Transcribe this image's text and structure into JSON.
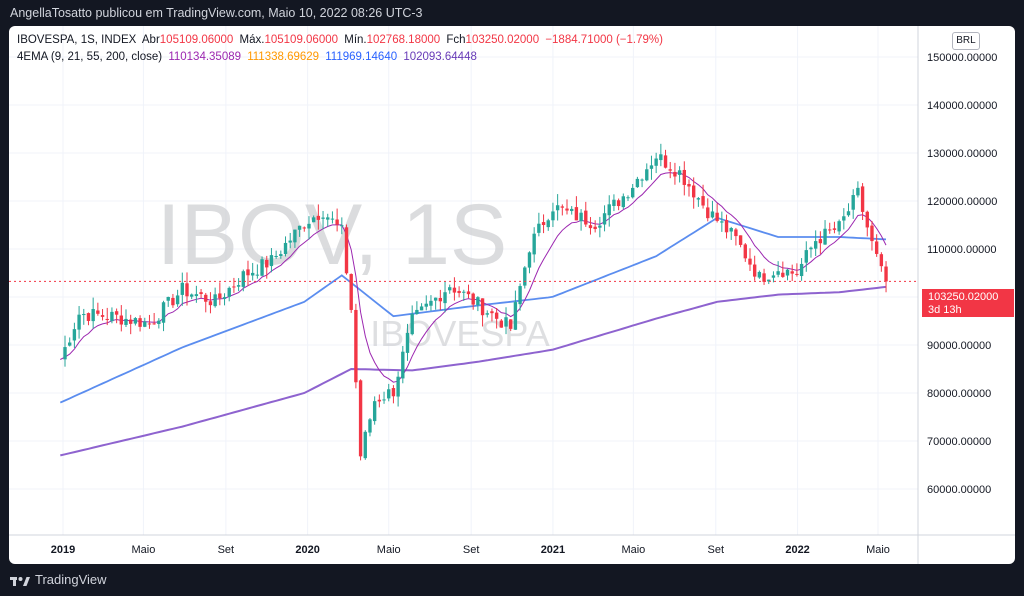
{
  "header": {
    "publisher_line": "AngellaTosatto publicou em TradingView.com, Maio 10, 2022 08:26 UTC-3"
  },
  "legend": {
    "symbol": "IBOVESPA, 1S, INDEX",
    "open_label": "Abr",
    "open_value": "105109.06000",
    "high_label": "Máx.",
    "high_value": "105109.06000",
    "low_label": "Mín.",
    "low_value": "102768.18000",
    "close_label": "Fch",
    "close_value": "103250.02000",
    "change": "−1884.71000 (−1.79%)",
    "indicator_name": "4EMA (9, 21, 55, 200, close)",
    "ema9": "110134.35089",
    "ema21": "111338.69629",
    "ema55": "111969.14640",
    "ema200": "102093.64448"
  },
  "currency_badge": "BRL",
  "price_tag": {
    "price": "103250.02000",
    "countdown": "3d 13h"
  },
  "watermark": {
    "big": "IBOV, 1S",
    "small": "IBOVESPA"
  },
  "footer": {
    "brand": "TradingView"
  },
  "colors": {
    "up": "#26a69a",
    "down": "#f23645",
    "ema9": "#9c27b0",
    "ema21": "#ff9800",
    "ema55": "#5b8def",
    "ema200": "#8e63cf"
  },
  "chart_data": {
    "type": "candlestick",
    "y_ticks": [
      "150000.00000",
      "140000.00000",
      "130000.00000",
      "120000.00000",
      "110000.00000",
      "100000.00000",
      "90000.00000",
      "80000.00000",
      "70000.00000",
      "60000.00000"
    ],
    "x_ticks": [
      "2019",
      "Maio",
      "Set",
      "2020",
      "Maio",
      "Set",
      "2021",
      "Maio",
      "Set",
      "2022",
      "Maio"
    ],
    "ylim": [
      56000,
      156000
    ],
    "last_close": 103250.02,
    "close_anchors": [
      [
        "2018-12-28",
        87000
      ],
      [
        "2019-01-25",
        96500
      ],
      [
        "2019-03-15",
        96000
      ],
      [
        "2019-05-10",
        94500
      ],
      [
        "2019-06-28",
        101500
      ],
      [
        "2019-08-16",
        99000
      ],
      [
        "2019-09-27",
        104500
      ],
      [
        "2019-11-08",
        107500
      ],
      [
        "2019-12-27",
        115500
      ],
      [
        "2020-01-24",
        118000
      ],
      [
        "2020-02-21",
        113500
      ],
      [
        "2020-03-06",
        97500
      ],
      [
        "2020-03-20",
        67000
      ],
      [
        "2020-04-10",
        78500
      ],
      [
        "2020-05-08",
        80500
      ],
      [
        "2020-06-05",
        95000
      ],
      [
        "2020-07-31",
        102500
      ],
      [
        "2020-09-11",
        98500
      ],
      [
        "2020-10-30",
        93500
      ],
      [
        "2020-11-27",
        110500
      ],
      [
        "2020-12-31",
        119000
      ],
      [
        "2021-01-22",
        117500
      ],
      [
        "2021-03-05",
        115500
      ],
      [
        "2021-04-16",
        121000
      ],
      [
        "2021-06-04",
        129500
      ],
      [
        "2021-07-09",
        126000
      ],
      [
        "2021-08-20",
        118000
      ],
      [
        "2021-10-01",
        112000
      ],
      [
        "2021-11-05",
        104000
      ],
      [
        "2021-12-03",
        106000
      ],
      [
        "2021-12-30",
        104800
      ],
      [
        "2022-01-28",
        111900
      ],
      [
        "2022-03-04",
        114500
      ],
      [
        "2022-04-01",
        121500
      ],
      [
        "2022-04-22",
        111000
      ],
      [
        "2022-05-06",
        105100
      ],
      [
        "2022-05-13",
        103250
      ]
    ],
    "ema55_anchors": [
      [
        "2018-12-28",
        78000
      ],
      [
        "2019-06-28",
        89500
      ],
      [
        "2019-12-27",
        99000
      ],
      [
        "2020-02-21",
        104500
      ],
      [
        "2020-05-08",
        96000
      ],
      [
        "2020-08-28",
        98000
      ],
      [
        "2020-12-31",
        100000
      ],
      [
        "2021-06-04",
        108500
      ],
      [
        "2021-09-03",
        116500
      ],
      [
        "2021-12-03",
        112500
      ],
      [
        "2022-03-04",
        112500
      ],
      [
        "2022-05-13",
        112000
      ]
    ],
    "ema200_anchors": [
      [
        "2018-12-28",
        67000
      ],
      [
        "2019-06-28",
        73000
      ],
      [
        "2019-12-27",
        80000
      ],
      [
        "2020-03-06",
        85000
      ],
      [
        "2020-06-05",
        84700
      ],
      [
        "2020-09-11",
        86500
      ],
      [
        "2020-12-31",
        89000
      ],
      [
        "2021-06-04",
        95500
      ],
      [
        "2021-09-03",
        99000
      ],
      [
        "2021-12-03",
        100500
      ],
      [
        "2022-03-04",
        101000
      ],
      [
        "2022-05-13",
        102100
      ]
    ]
  }
}
